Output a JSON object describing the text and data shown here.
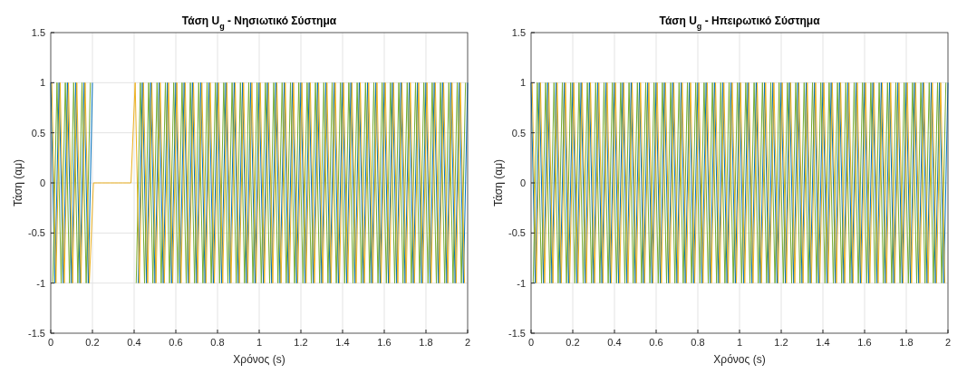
{
  "chart_data": [
    {
      "type": "line",
      "title": "Τάση U$_{g}$ - Νησιωτικό Σύστημα",
      "xlabel": "Χρόνος (s)",
      "ylabel": "Τάση (αμ)",
      "xlim": [
        0,
        2
      ],
      "ylim": [
        -1.5,
        1.5
      ],
      "xticks": [
        0,
        0.2,
        0.4,
        0.6,
        0.8,
        1,
        1.2,
        1.4,
        1.6,
        1.8,
        2
      ],
      "yticks": [
        -1.5,
        -1,
        -0.5,
        0,
        0.5,
        1,
        1.5
      ],
      "grid": true,
      "series": [
        {
          "color": "#0072bd",
          "x": [
            0,
            0.02,
            0.04,
            0.06,
            0.08,
            0.1,
            0.12,
            0.14,
            0.16,
            0.18,
            0.2,
            0.22,
            0.24,
            0.26,
            0.28,
            0.3,
            0.32,
            0.34,
            0.36,
            0.38,
            0.4,
            0.42,
            0.44,
            0.46,
            0.48,
            0.5,
            0.52,
            0.54,
            0.56,
            0.58,
            0.6,
            0.62,
            0.64,
            0.66,
            0.68,
            0.7,
            0.72,
            0.74,
            0.76,
            0.78,
            0.8,
            0.82,
            0.84,
            0.86,
            0.88,
            0.9,
            0.92,
            0.94,
            0.96,
            0.98,
            1,
            1.02,
            1.04,
            1.06,
            1.08,
            1.1,
            1.12,
            1.14,
            1.16,
            1.18,
            1.2,
            1.22,
            1.24,
            1.26,
            1.28,
            1.3,
            1.32,
            1.34,
            1.36,
            1.38,
            1.4,
            1.42,
            1.44,
            1.46,
            1.48,
            1.5,
            1.52,
            1.54,
            1.56,
            1.58,
            1.6,
            1.62,
            1.64,
            1.66,
            1.68,
            1.7,
            1.72,
            1.74,
            1.76,
            1.78,
            1.8,
            1.82,
            1.84,
            1.86,
            1.88,
            1.9,
            1.92,
            1.94,
            1.96,
            1.98,
            2
          ],
          "values": [
            1,
            -1,
            1,
            -1,
            1,
            -1,
            1,
            -1,
            1,
            -1,
            1,
            null,
            null,
            null,
            null,
            null,
            null,
            null,
            null,
            null,
            null,
            -1,
            1,
            -1,
            1,
            -1,
            1,
            -1,
            1,
            -1,
            1,
            -1,
            1,
            -1,
            1,
            -1,
            1,
            -1,
            1,
            -1,
            1,
            -1,
            1,
            -1,
            1,
            -1,
            1,
            -1,
            1,
            -1,
            1,
            -1,
            1,
            -1,
            1,
            -1,
            1,
            -1,
            1,
            -1,
            1,
            -1,
            1,
            -1,
            1,
            -1,
            1,
            -1,
            1,
            -1,
            1,
            -1,
            1,
            -1,
            1,
            -1,
            1,
            -1,
            1,
            -1,
            1,
            -1,
            1,
            -1,
            1,
            -1,
            1,
            -1,
            1,
            -1,
            1,
            -1,
            1,
            -1,
            1,
            -1,
            1,
            -1,
            1,
            -1,
            1
          ]
        },
        {
          "color": "#77ac30",
          "x": [
            0.01,
            0.03,
            0.05,
            0.07,
            0.09,
            0.11,
            0.13,
            0.15,
            0.17,
            0.19,
            0.21,
            0.23,
            0.25,
            0.27,
            0.29,
            0.31,
            0.33,
            0.35,
            0.37,
            0.39,
            0.41,
            0.43,
            0.45,
            0.47,
            0.49,
            0.51,
            0.53,
            0.55,
            0.57,
            0.59,
            0.61,
            0.63,
            0.65,
            0.67,
            0.69,
            0.71,
            0.73,
            0.75,
            0.77,
            0.79,
            0.81,
            0.83,
            0.85,
            0.87,
            0.89,
            0.91,
            0.93,
            0.95,
            0.97,
            0.99,
            1.01,
            1.03,
            1.05,
            1.07,
            1.09,
            1.11,
            1.13,
            1.15,
            1.17,
            1.19,
            1.21,
            1.23,
            1.25,
            1.27,
            1.29,
            1.31,
            1.33,
            1.35,
            1.37,
            1.39,
            1.41,
            1.43,
            1.45,
            1.47,
            1.49,
            1.51,
            1.53,
            1.55,
            1.57,
            1.59,
            1.61,
            1.63,
            1.65,
            1.67,
            1.69,
            1.71,
            1.73,
            1.75,
            1.77,
            1.79,
            1.81,
            1.83,
            1.85,
            1.87,
            1.89,
            1.91,
            1.93,
            1.95,
            1.97,
            1.99
          ],
          "values": [
            -1,
            1,
            -1,
            1,
            -1,
            1,
            -1,
            1,
            -1,
            1,
            null,
            null,
            null,
            null,
            null,
            null,
            null,
            null,
            null,
            null,
            -1,
            1,
            -1,
            1,
            -1,
            1,
            -1,
            1,
            -1,
            1,
            -1,
            1,
            -1,
            1,
            -1,
            1,
            -1,
            1,
            -1,
            1,
            -1,
            1,
            -1,
            1,
            -1,
            1,
            -1,
            1,
            -1,
            1,
            -1,
            1,
            -1,
            1,
            -1,
            1,
            -1,
            1,
            -1,
            1,
            -1,
            1,
            -1,
            1,
            -1,
            1,
            -1,
            1,
            -1,
            1,
            -1,
            1,
            -1,
            1,
            -1,
            1,
            -1,
            1,
            -1,
            1,
            -1,
            1,
            -1,
            1,
            -1,
            1,
            -1,
            1,
            -1,
            1,
            -1,
            1,
            -1,
            1,
            -1,
            1,
            -1,
            1,
            -1,
            1
          ]
        },
        {
          "color": "#edb120",
          "x": [
            0.005,
            0.025,
            0.045,
            0.065,
            0.085,
            0.105,
            0.125,
            0.145,
            0.165,
            0.185,
            0.205,
            0.225,
            0.245,
            0.265,
            0.285,
            0.305,
            0.325,
            0.345,
            0.365,
            0.385,
            0.405,
            0.425,
            0.445,
            0.465,
            0.485,
            0.505,
            0.525,
            0.545,
            0.565,
            0.585,
            0.605,
            0.625,
            0.645,
            0.665,
            0.685,
            0.705,
            0.725,
            0.745,
            0.765,
            0.785,
            0.805,
            0.825,
            0.845,
            0.865,
            0.885,
            0.905,
            0.925,
            0.945,
            0.965,
            0.985,
            1.005,
            1.025,
            1.045,
            1.065,
            1.085,
            1.105,
            1.125,
            1.145,
            1.165,
            1.185,
            1.205,
            1.225,
            1.245,
            1.265,
            1.285,
            1.305,
            1.325,
            1.345,
            1.365,
            1.385,
            1.405,
            1.425,
            1.445,
            1.465,
            1.485,
            1.505,
            1.525,
            1.545,
            1.565,
            1.585,
            1.605,
            1.625,
            1.645,
            1.665,
            1.685,
            1.705,
            1.725,
            1.745,
            1.765,
            1.785,
            1.805,
            1.825,
            1.845,
            1.865,
            1.885,
            1.905,
            1.925,
            1.945,
            1.965,
            1.985
          ],
          "values": [
            1,
            -1,
            1,
            -1,
            1,
            -1,
            1,
            -1,
            1,
            -1,
            0,
            0,
            0,
            0,
            0,
            0,
            0,
            0,
            0,
            0,
            1,
            -1,
            1,
            -1,
            1,
            -1,
            1,
            -1,
            1,
            -1,
            1,
            -1,
            1,
            -1,
            1,
            -1,
            1,
            -1,
            1,
            -1,
            1,
            -1,
            1,
            -1,
            1,
            -1,
            1,
            -1,
            1,
            -1,
            1,
            -1,
            1,
            -1,
            1,
            -1,
            1,
            -1,
            1,
            -1,
            1,
            -1,
            1,
            -1,
            1,
            -1,
            1,
            -1,
            1,
            -1,
            1,
            -1,
            1,
            -1,
            1,
            -1,
            1,
            -1,
            1,
            -1,
            1,
            -1,
            1,
            -1,
            1,
            -1,
            1,
            -1,
            1,
            -1,
            1,
            -1,
            1,
            -1,
            1,
            -1,
            1,
            -1,
            1,
            -1
          ]
        }
      ]
    },
    {
      "type": "line",
      "title": "Τάση U$_{g}$ - Ηπειρωτικό Σύστημα",
      "xlabel": "Χρόνος (s)",
      "ylabel": "Τάση (αμ)",
      "xlim": [
        0,
        2
      ],
      "ylim": [
        -1.5,
        1.5
      ],
      "xticks": [
        0,
        0.2,
        0.4,
        0.6,
        0.8,
        1,
        1.2,
        1.4,
        1.6,
        1.8,
        2
      ],
      "yticks": [
        -1.5,
        -1,
        -0.5,
        0,
        0.5,
        1,
        1.5
      ],
      "grid": true,
      "series": [
        {
          "color": "#0072bd",
          "x": [
            0,
            0.02,
            0.04,
            0.06,
            0.08,
            0.1,
            0.12,
            0.14,
            0.16,
            0.18,
            0.2,
            0.22,
            0.24,
            0.26,
            0.28,
            0.3,
            0.32,
            0.34,
            0.36,
            0.38,
            0.4,
            0.42,
            0.44,
            0.46,
            0.48,
            0.5,
            0.52,
            0.54,
            0.56,
            0.58,
            0.6,
            0.62,
            0.64,
            0.66,
            0.68,
            0.7,
            0.72,
            0.74,
            0.76,
            0.78,
            0.8,
            0.82,
            0.84,
            0.86,
            0.88,
            0.9,
            0.92,
            0.94,
            0.96,
            0.98,
            1,
            1.02,
            1.04,
            1.06,
            1.08,
            1.1,
            1.12,
            1.14,
            1.16,
            1.18,
            1.2,
            1.22,
            1.24,
            1.26,
            1.28,
            1.3,
            1.32,
            1.34,
            1.36,
            1.38,
            1.4,
            1.42,
            1.44,
            1.46,
            1.48,
            1.5,
            1.52,
            1.54,
            1.56,
            1.58,
            1.6,
            1.62,
            1.64,
            1.66,
            1.68,
            1.7,
            1.72,
            1.74,
            1.76,
            1.78,
            1.8,
            1.82,
            1.84,
            1.86,
            1.88,
            1.9,
            1.92,
            1.94,
            1.96,
            1.98,
            2
          ],
          "values": [
            1,
            -1,
            1,
            -1,
            1,
            -1,
            1,
            -1,
            1,
            -1,
            1,
            -1,
            1,
            -1,
            1,
            -1,
            1,
            -1,
            1,
            -1,
            1,
            -1,
            1,
            -1,
            1,
            -1,
            1,
            -1,
            1,
            -1,
            1,
            -1,
            1,
            -1,
            1,
            -1,
            1,
            -1,
            1,
            -1,
            1,
            -1,
            1,
            -1,
            1,
            -1,
            1,
            -1,
            1,
            -1,
            1,
            -1,
            1,
            -1,
            1,
            -1,
            1,
            -1,
            1,
            -1,
            1,
            -1,
            1,
            -1,
            1,
            -1,
            1,
            -1,
            1,
            -1,
            1,
            -1,
            1,
            -1,
            1,
            -1,
            1,
            -1,
            1,
            -1,
            1,
            -1,
            1,
            -1,
            1,
            -1,
            1,
            -1,
            1,
            -1,
            1,
            -1,
            1,
            -1,
            1,
            -1,
            1,
            -1,
            1,
            -1,
            1
          ]
        },
        {
          "color": "#77ac30",
          "x": [
            0.01,
            0.03,
            0.05,
            0.07,
            0.09,
            0.11,
            0.13,
            0.15,
            0.17,
            0.19,
            0.21,
            0.23,
            0.25,
            0.27,
            0.29,
            0.31,
            0.33,
            0.35,
            0.37,
            0.39,
            0.41,
            0.43,
            0.45,
            0.47,
            0.49,
            0.51,
            0.53,
            0.55,
            0.57,
            0.59,
            0.61,
            0.63,
            0.65,
            0.67,
            0.69,
            0.71,
            0.73,
            0.75,
            0.77,
            0.79,
            0.81,
            0.83,
            0.85,
            0.87,
            0.89,
            0.91,
            0.93,
            0.95,
            0.97,
            0.99,
            1.01,
            1.03,
            1.05,
            1.07,
            1.09,
            1.11,
            1.13,
            1.15,
            1.17,
            1.19,
            1.21,
            1.23,
            1.25,
            1.27,
            1.29,
            1.31,
            1.33,
            1.35,
            1.37,
            1.39,
            1.41,
            1.43,
            1.45,
            1.47,
            1.49,
            1.51,
            1.53,
            1.55,
            1.57,
            1.59,
            1.61,
            1.63,
            1.65,
            1.67,
            1.69,
            1.71,
            1.73,
            1.75,
            1.77,
            1.79,
            1.81,
            1.83,
            1.85,
            1.87,
            1.89,
            1.91,
            1.93,
            1.95,
            1.97,
            1.99
          ],
          "values": [
            -1,
            1,
            -1,
            1,
            -1,
            1,
            -1,
            1,
            -1,
            1,
            -1,
            1,
            -1,
            1,
            -1,
            1,
            -1,
            1,
            -1,
            1,
            -1,
            1,
            -1,
            1,
            -1,
            1,
            -1,
            1,
            -1,
            1,
            -1,
            1,
            -1,
            1,
            -1,
            1,
            -1,
            1,
            -1,
            1,
            -1,
            1,
            -1,
            1,
            -1,
            1,
            -1,
            1,
            -1,
            1,
            -1,
            1,
            -1,
            1,
            -1,
            1,
            -1,
            1,
            -1,
            1,
            -1,
            1,
            -1,
            1,
            -1,
            1,
            -1,
            1,
            -1,
            1,
            -1,
            1,
            -1,
            1,
            -1,
            1,
            -1,
            1,
            -1,
            1,
            -1,
            1,
            -1,
            1,
            -1,
            1,
            -1,
            1,
            -1,
            1,
            -1,
            1,
            -1,
            1,
            -1,
            1,
            -1,
            1,
            -1,
            1
          ]
        },
        {
          "color": "#edb120",
          "x": [
            0.005,
            0.025,
            0.045,
            0.065,
            0.085,
            0.105,
            0.125,
            0.145,
            0.165,
            0.185,
            0.205,
            0.225,
            0.245,
            0.265,
            0.285,
            0.305,
            0.325,
            0.345,
            0.365,
            0.385,
            0.405,
            0.425,
            0.445,
            0.465,
            0.485,
            0.505,
            0.525,
            0.545,
            0.565,
            0.585,
            0.605,
            0.625,
            0.645,
            0.665,
            0.685,
            0.705,
            0.725,
            0.745,
            0.765,
            0.785,
            0.805,
            0.825,
            0.845,
            0.865,
            0.885,
            0.905,
            0.925,
            0.945,
            0.965,
            0.985,
            1.005,
            1.025,
            1.045,
            1.065,
            1.085,
            1.105,
            1.125,
            1.145,
            1.165,
            1.185,
            1.205,
            1.225,
            1.245,
            1.265,
            1.285,
            1.305,
            1.325,
            1.345,
            1.365,
            1.385,
            1.405,
            1.425,
            1.445,
            1.465,
            1.485,
            1.505,
            1.525,
            1.545,
            1.565,
            1.585,
            1.605,
            1.625,
            1.645,
            1.665,
            1.685,
            1.705,
            1.725,
            1.745,
            1.765,
            1.785,
            1.805,
            1.825,
            1.845,
            1.865,
            1.885,
            1.905,
            1.925,
            1.945,
            1.965,
            1.985
          ],
          "values": [
            1,
            -1,
            1,
            -1,
            1,
            -1,
            1,
            -1,
            1,
            -1,
            1,
            -1,
            1,
            -1,
            1,
            -1,
            1,
            -1,
            1,
            -1,
            1,
            -1,
            1,
            -1,
            1,
            -1,
            1,
            -1,
            1,
            -1,
            1,
            -1,
            1,
            -1,
            1,
            -1,
            1,
            -1,
            1,
            -1,
            1,
            -1,
            1,
            -1,
            1,
            -1,
            1,
            -1,
            1,
            -1,
            1,
            -1,
            1,
            -1,
            1,
            -1,
            1,
            -1,
            1,
            -1,
            1,
            -1,
            1,
            -1,
            1,
            -1,
            1,
            -1,
            1,
            -1,
            1,
            -1,
            1,
            -1,
            1,
            -1,
            1,
            -1,
            1,
            -1,
            1,
            -1,
            1,
            -1,
            1,
            -1,
            1,
            -1,
            1,
            -1,
            1,
            -1,
            1,
            -1,
            1,
            -1,
            1,
            -1,
            1,
            -1
          ]
        }
      ]
    }
  ]
}
